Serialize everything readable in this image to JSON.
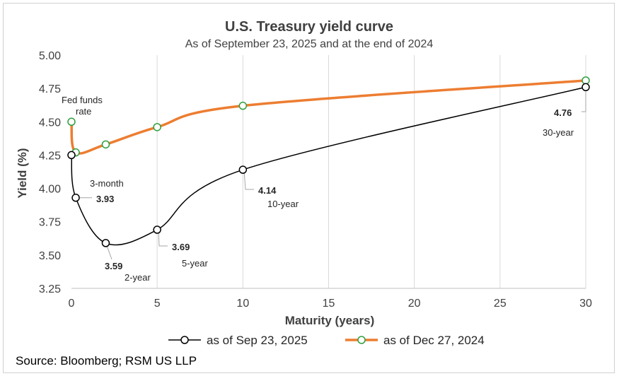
{
  "chart_data": {
    "type": "line",
    "title": "U.S. Treasury yield curve",
    "subtitle": "As of September 23, 2025  and at the end of 2024",
    "xlabel": "Maturity (years)",
    "ylabel": "Yield (%)",
    "xlim": [
      0,
      30
    ],
    "ylim": [
      3.25,
      5.0
    ],
    "x_ticks": [
      0,
      5,
      10,
      15,
      20,
      25,
      30
    ],
    "y_ticks": [
      "3.25",
      "3.50",
      "3.75",
      "4.00",
      "4.25",
      "4.50",
      "4.75",
      "5.00"
    ],
    "grid": "vertical",
    "series": [
      {
        "name": "as of Sep 23, 2025",
        "color": "#000000",
        "marker_color": "#000000",
        "x": [
          0,
          0.25,
          2,
          5,
          10,
          30
        ],
        "y": [
          4.25,
          3.93,
          3.59,
          3.69,
          4.14,
          4.76
        ]
      },
      {
        "name": "as of Dec 27, 2024",
        "color": "#ED7D31",
        "marker_color": "#2E9E3E",
        "x": [
          0,
          0.25,
          2,
          5,
          10,
          30
        ],
        "y": [
          4.5,
          4.27,
          4.33,
          4.46,
          4.62,
          4.81
        ]
      }
    ],
    "data_labels": [
      "3.93",
      "3.59",
      "3.69",
      "4.14",
      "4.76"
    ],
    "annotations": {
      "fed_funds": [
        "Fed funds",
        "rate"
      ],
      "three_month": "3-month",
      "two_year": "2-year",
      "five_year": "5-year",
      "ten_year": "10-year",
      "thirty_year": "30-year"
    }
  },
  "legend": [
    "as of Sep 23, 2025",
    "as of Dec 27, 2024"
  ],
  "source": "Source: Bloomberg; RSM US LLP"
}
